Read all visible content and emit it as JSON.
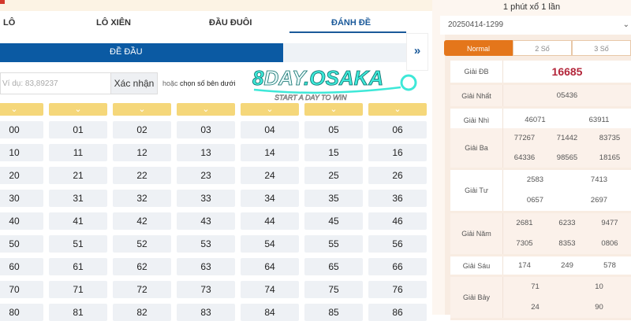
{
  "tabs": [
    {
      "label": "LÔ"
    },
    {
      "label": "LÔ XIÊN"
    },
    {
      "label": "ĐẦU ĐUÔI"
    },
    {
      "label": "ĐÁNH ĐỀ",
      "active": true
    }
  ],
  "subtab": "ĐỀ ĐẦU",
  "expand_icon": "double-chevron-right-icon",
  "input": {
    "value": "Ví dụ: 83,89237"
  },
  "confirm_label": "Xác nhận",
  "hint": {
    "prefix": "hoặc",
    "text": "chọn số bên dưới"
  },
  "logo": {
    "line1": "8DAY",
    "line2": ".OSAKA",
    "tagline": "START A DAY TO WIN"
  },
  "numbers": [
    [
      "00",
      "01",
      "02",
      "03",
      "04",
      "05",
      "06"
    ],
    [
      "10",
      "11",
      "12",
      "13",
      "14",
      "15",
      "16"
    ],
    [
      "20",
      "21",
      "22",
      "23",
      "24",
      "25",
      "26"
    ],
    [
      "30",
      "31",
      "32",
      "33",
      "34",
      "35",
      "36"
    ],
    [
      "40",
      "41",
      "42",
      "43",
      "44",
      "45",
      "46"
    ],
    [
      "50",
      "51",
      "52",
      "53",
      "54",
      "55",
      "56"
    ],
    [
      "60",
      "61",
      "62",
      "63",
      "64",
      "65",
      "66"
    ],
    [
      "70",
      "71",
      "72",
      "73",
      "74",
      "75",
      "76"
    ],
    [
      "80",
      "81",
      "82",
      "83",
      "84",
      "85",
      "86"
    ]
  ],
  "results": {
    "title": "1 phút xổ 1 lần",
    "draw_id": "20250414-1299",
    "modes": [
      "Normal",
      "2 Số",
      "3 Số"
    ],
    "prizes": [
      {
        "label": "Giải ĐB",
        "values": [
          "16685"
        ]
      },
      {
        "label": "Giải Nhất",
        "values": [
          "05436"
        ]
      },
      {
        "label": "Giải Nhì",
        "values": [
          "46071",
          "63911"
        ]
      },
      {
        "label": "Giải Ba",
        "values": [
          "77267",
          "71442",
          "83735",
          "64336",
          "98565",
          "18165"
        ]
      },
      {
        "label": "Giải Tư",
        "values": [
          "2583",
          "7413",
          "0657",
          "2697"
        ]
      },
      {
        "label": "Giải Năm",
        "values": [
          "2681",
          "6233",
          "9477",
          "7305",
          "8353",
          "0806"
        ]
      },
      {
        "label": "Giải Sáu",
        "values": [
          "174",
          "249",
          "578"
        ]
      },
      {
        "label": "Giải Bảy",
        "values": [
          "71",
          "10",
          "24",
          "90"
        ]
      }
    ]
  },
  "colors": {
    "accent": "#0b5aa3",
    "orange": "#e4761b",
    "special": "#b3263a",
    "chevron": "#f5d77a"
  }
}
